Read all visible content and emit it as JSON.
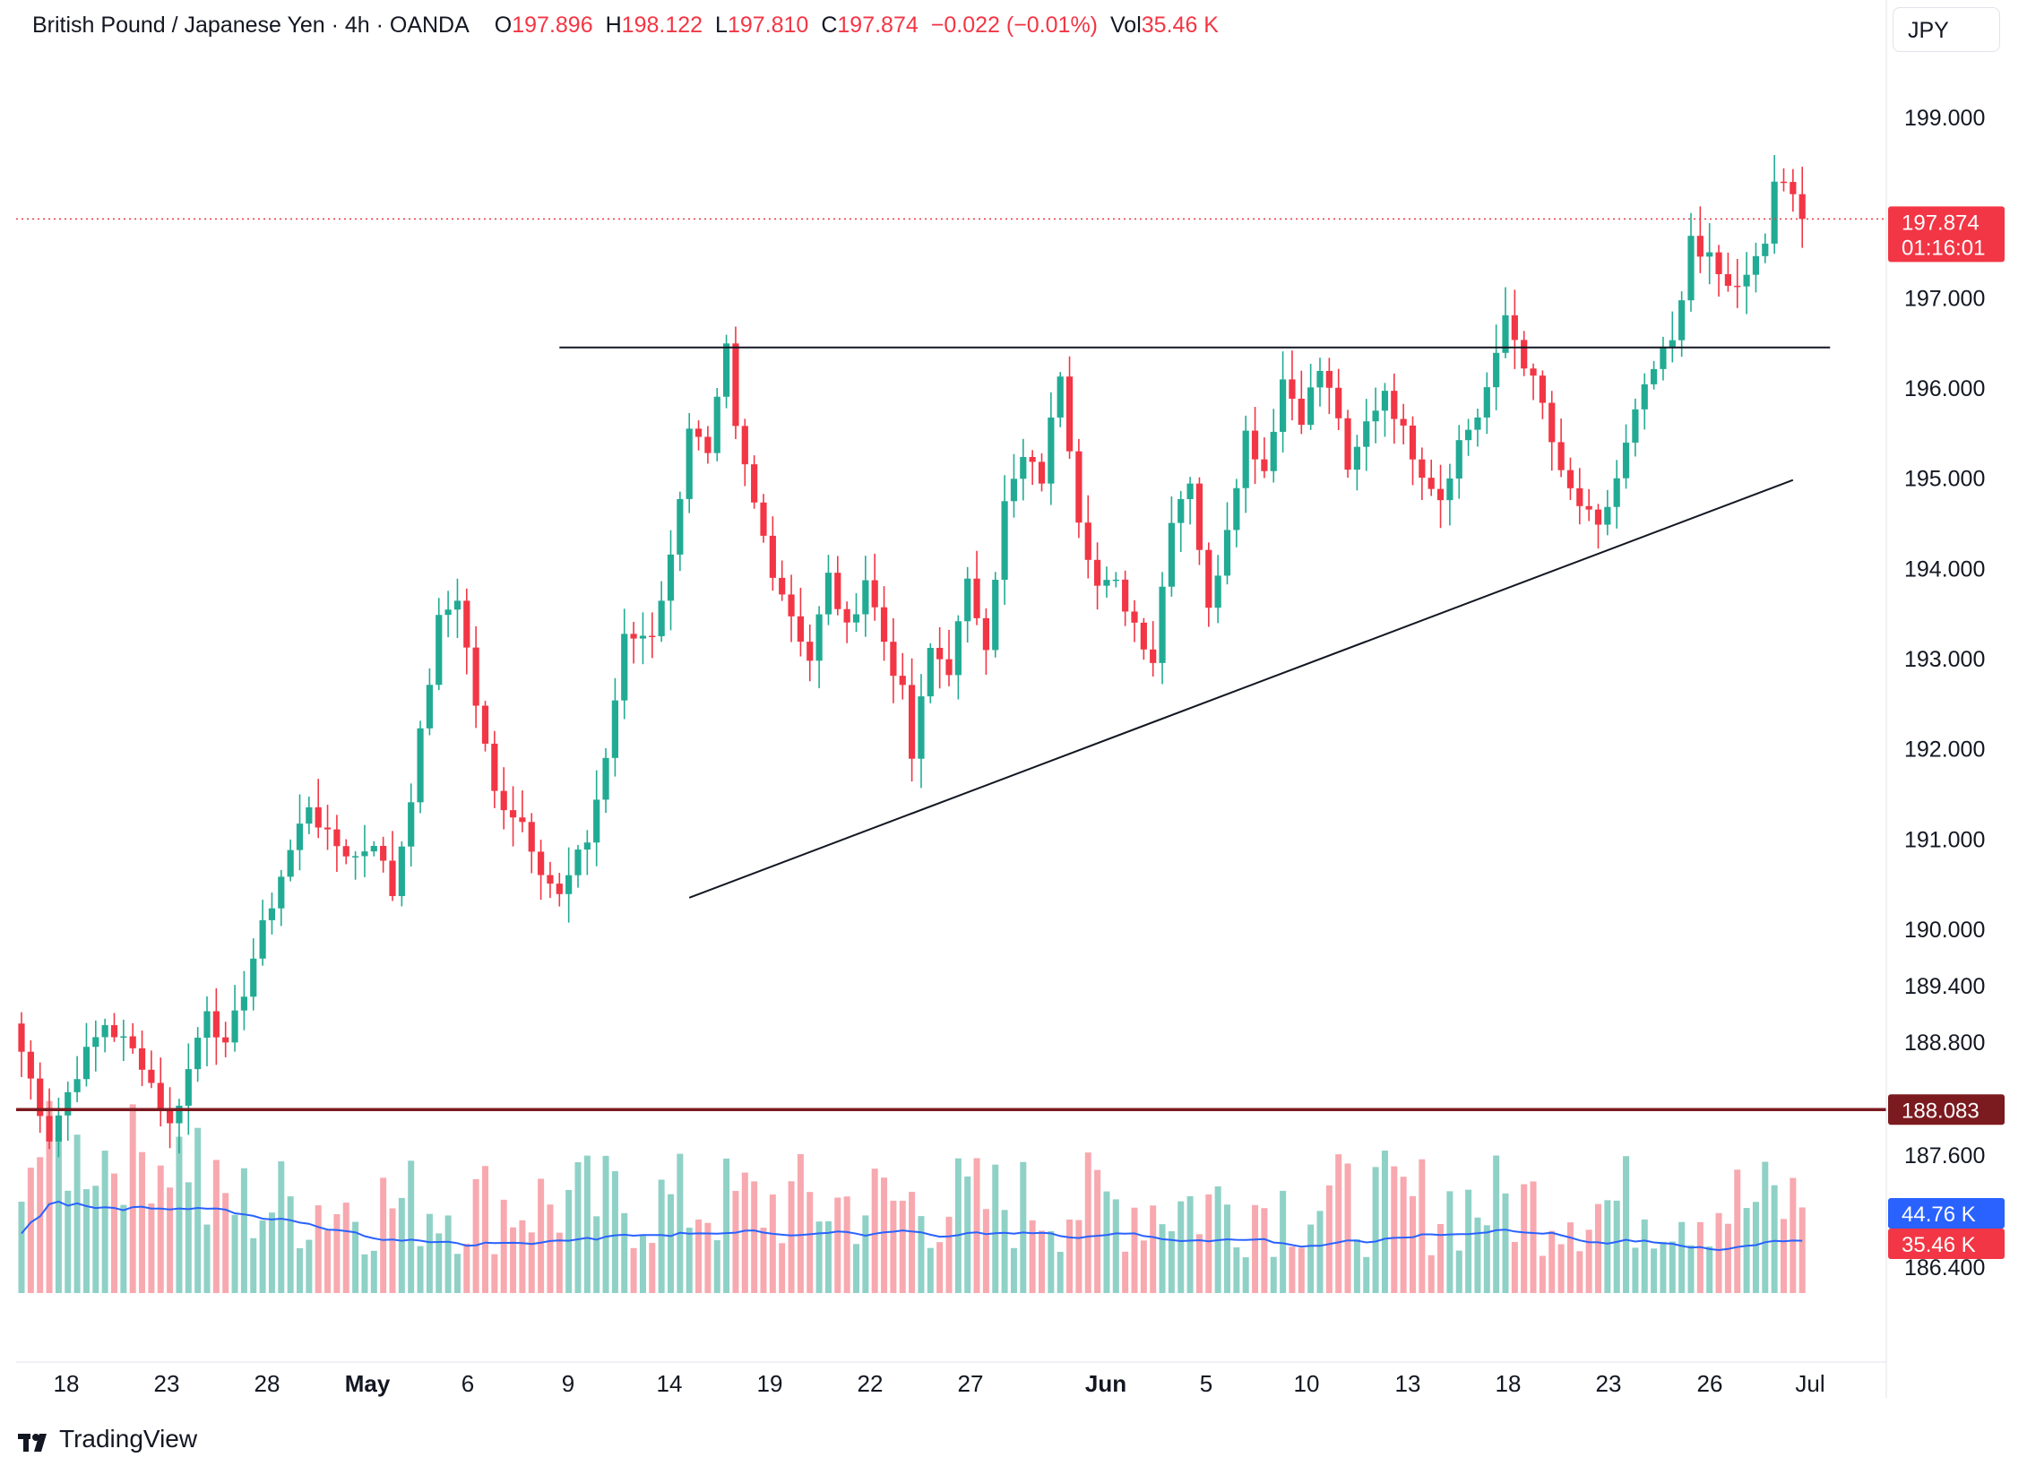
{
  "header": {
    "symbol": "British Pound / Japanese Yen · 4h · OANDA",
    "open_label": "O",
    "open": "197.896",
    "high_label": "H",
    "high": "198.122",
    "low_label": "L",
    "low": "197.810",
    "close_label": "C",
    "close": "197.874",
    "change": "−0.022 (−0.01%)",
    "vol_label": "Vol",
    "vol": "35.46 K"
  },
  "currency": "JPY",
  "brand": "TradingView",
  "colors": {
    "up": "#22ab94",
    "down": "#f23645",
    "up_vol": "#8fd1c6",
    "down_vol": "#f7a9af",
    "vol_ma": "#2962ff",
    "support": "#7b1a1f",
    "price_tag": "#f23645",
    "trendline": "#131722"
  },
  "chart_data": {
    "type": "candlestick",
    "y_axis": {
      "ticks": [
        199.0,
        197.0,
        196.0,
        195.0,
        194.0,
        193.0,
        192.0,
        191.0,
        190.0,
        189.4,
        188.8,
        187.6,
        186.4
      ],
      "tick_labels": [
        "199.000",
        "197.000",
        "196.000",
        "195.000",
        "194.000",
        "193.000",
        "192.000",
        "191.000",
        "190.000",
        "189.400",
        "188.800",
        "187.600",
        "186.400"
      ]
    },
    "x_axis": {
      "labels": [
        "18",
        "23",
        "28",
        "May",
        "6",
        "9",
        "14",
        "19",
        "22",
        "27",
        "Jun",
        "5",
        "10",
        "13",
        "18",
        "23",
        "26",
        "Jul"
      ],
      "bold": [
        "May",
        "Jun"
      ]
    },
    "current_price": {
      "value": 197.874,
      "label": "197.874",
      "countdown": "01:16:01"
    },
    "support_level": {
      "value": 188.083,
      "label": "188.083"
    },
    "volume_tags": {
      "ma_label": "44.76 K",
      "last_label": "35.46 K"
    },
    "resistance_line": {
      "from_index": 58,
      "to_index": 195,
      "value": 196.45
    },
    "rising_trendline": {
      "from_index": 72,
      "from_value": 190.35,
      "to_index": 191,
      "to_value": 194.98
    },
    "anchors": [
      [
        0,
        188.7
      ],
      [
        3,
        187.8
      ],
      [
        6,
        188.5
      ],
      [
        9,
        189.0
      ],
      [
        13,
        188.6
      ],
      [
        16,
        187.9
      ],
      [
        18,
        188.5
      ],
      [
        20,
        189.2
      ],
      [
        22,
        188.7
      ],
      [
        25,
        189.7
      ],
      [
        28,
        190.6
      ],
      [
        31,
        191.4
      ],
      [
        33,
        191.0
      ],
      [
        36,
        190.8
      ],
      [
        38,
        191.0
      ],
      [
        40,
        190.4
      ],
      [
        42,
        191.5
      ],
      [
        45,
        193.4
      ],
      [
        47,
        193.7
      ],
      [
        49,
        192.5
      ],
      [
        51,
        191.5
      ],
      [
        54,
        191.2
      ],
      [
        56,
        190.7
      ],
      [
        58,
        190.35
      ],
      [
        61,
        191.0
      ],
      [
        63,
        191.9
      ],
      [
        65,
        193.2
      ],
      [
        68,
        193.3
      ],
      [
        70,
        194.1
      ],
      [
        72,
        195.6
      ],
      [
        74,
        195.2
      ],
      [
        76,
        196.4
      ],
      [
        77,
        195.5
      ],
      [
        79,
        194.7
      ],
      [
        81,
        194.0
      ],
      [
        83,
        193.5
      ],
      [
        85,
        193.0
      ],
      [
        87,
        193.9
      ],
      [
        89,
        193.3
      ],
      [
        91,
        193.9
      ],
      [
        93,
        193.2
      ],
      [
        95,
        192.6
      ],
      [
        96,
        191.9
      ],
      [
        98,
        193.1
      ],
      [
        100,
        192.9
      ],
      [
        102,
        193.8
      ],
      [
        104,
        193.2
      ],
      [
        106,
        194.7
      ],
      [
        108,
        195.2
      ],
      [
        110,
        195.0
      ],
      [
        112,
        196.2
      ],
      [
        114,
        194.6
      ],
      [
        116,
        193.8
      ],
      [
        118,
        193.8
      ],
      [
        120,
        193.4
      ],
      [
        122,
        193.0
      ],
      [
        124,
        194.6
      ],
      [
        126,
        195.0
      ],
      [
        128,
        193.5
      ],
      [
        130,
        194.5
      ],
      [
        132,
        195.5
      ],
      [
        134,
        195.1
      ],
      [
        136,
        196.1
      ],
      [
        138,
        195.7
      ],
      [
        140,
        196.2
      ],
      [
        142,
        195.7
      ],
      [
        143,
        195.0
      ],
      [
        145,
        195.6
      ],
      [
        147,
        196.0
      ],
      [
        149,
        195.5
      ],
      [
        151,
        195.1
      ],
      [
        153,
        194.8
      ],
      [
        155,
        195.4
      ],
      [
        157,
        195.7
      ],
      [
        159,
        196.3
      ],
      [
        160,
        196.8
      ],
      [
        162,
        196.3
      ],
      [
        164,
        195.8
      ],
      [
        166,
        195.0
      ],
      [
        168,
        194.7
      ],
      [
        170,
        194.4
      ],
      [
        172,
        195.0
      ],
      [
        174,
        195.7
      ],
      [
        176,
        196.2
      ],
      [
        178,
        196.5
      ],
      [
        179,
        196.9
      ],
      [
        180,
        197.7
      ],
      [
        182,
        197.4
      ],
      [
        184,
        197.1
      ],
      [
        186,
        197.2
      ],
      [
        188,
        197.6
      ],
      [
        189,
        198.3
      ],
      [
        191,
        198.1
      ],
      [
        192,
        197.874
      ]
    ]
  }
}
